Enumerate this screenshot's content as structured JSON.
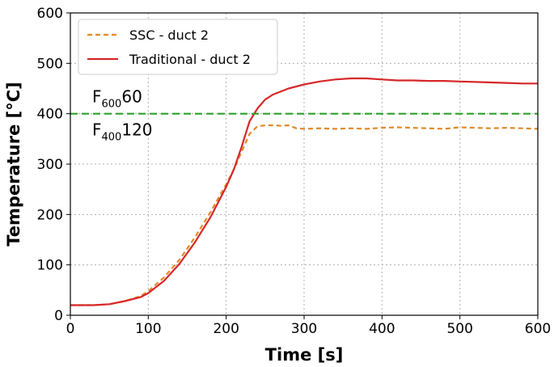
{
  "chart_data": {
    "type": "line",
    "xlabel": "Time [s]",
    "ylabel": "Temperature [°C]",
    "xlim": [
      0,
      600
    ],
    "ylim": [
      0,
      600
    ],
    "xticks": [
      0,
      100,
      200,
      300,
      400,
      500,
      600
    ],
    "yticks": [
      0,
      100,
      200,
      300,
      400,
      500,
      600
    ],
    "grid": true,
    "legend_position": "top-left",
    "series": [
      {
        "name": "SSC - duct 2",
        "color": "#e08a2c",
        "style": "dashed",
        "x": [
          0,
          30,
          50,
          70,
          90,
          100,
          120,
          140,
          160,
          180,
          200,
          210,
          220,
          230,
          240,
          250,
          260,
          270,
          280,
          290,
          300,
          320,
          340,
          360,
          380,
          400,
          420,
          440,
          460,
          480,
          500,
          520,
          540,
          560,
          580,
          600
        ],
        "y": [
          20,
          20,
          22,
          28,
          38,
          48,
          75,
          110,
          155,
          205,
          260,
          290,
          325,
          360,
          375,
          377,
          377,
          376,
          377,
          371,
          370,
          371,
          370,
          371,
          370,
          372,
          373,
          372,
          371,
          370,
          373,
          372,
          371,
          372,
          371,
          370
        ]
      },
      {
        "name": "Traditional - duct 2",
        "color": "#d62728",
        "style": "solid",
        "x": [
          0,
          30,
          50,
          70,
          90,
          100,
          120,
          140,
          160,
          180,
          200,
          210,
          220,
          230,
          240,
          250,
          260,
          280,
          300,
          320,
          340,
          360,
          380,
          400,
          420,
          440,
          460,
          480,
          500,
          520,
          540,
          560,
          580,
          600
        ],
        "y": [
          20,
          20,
          22,
          28,
          36,
          44,
          68,
          102,
          145,
          195,
          255,
          290,
          335,
          385,
          410,
          428,
          438,
          450,
          458,
          464,
          468,
          470,
          470,
          468,
          466,
          466,
          465,
          465,
          464,
          463,
          462,
          461,
          460,
          460
        ]
      },
      {
        "name": "",
        "color": "#2ca02c",
        "style": "dashed",
        "x": [
          0,
          600
        ],
        "y": [
          400,
          400
        ]
      }
    ],
    "annotations": [
      {
        "main": "F",
        "sub": "600",
        "tail": "60",
        "x": 0,
        "y": 400,
        "position": "above"
      },
      {
        "main": "F",
        "sub": "400",
        "tail": "120",
        "x": 0,
        "y": 400,
        "position": "below"
      }
    ]
  }
}
